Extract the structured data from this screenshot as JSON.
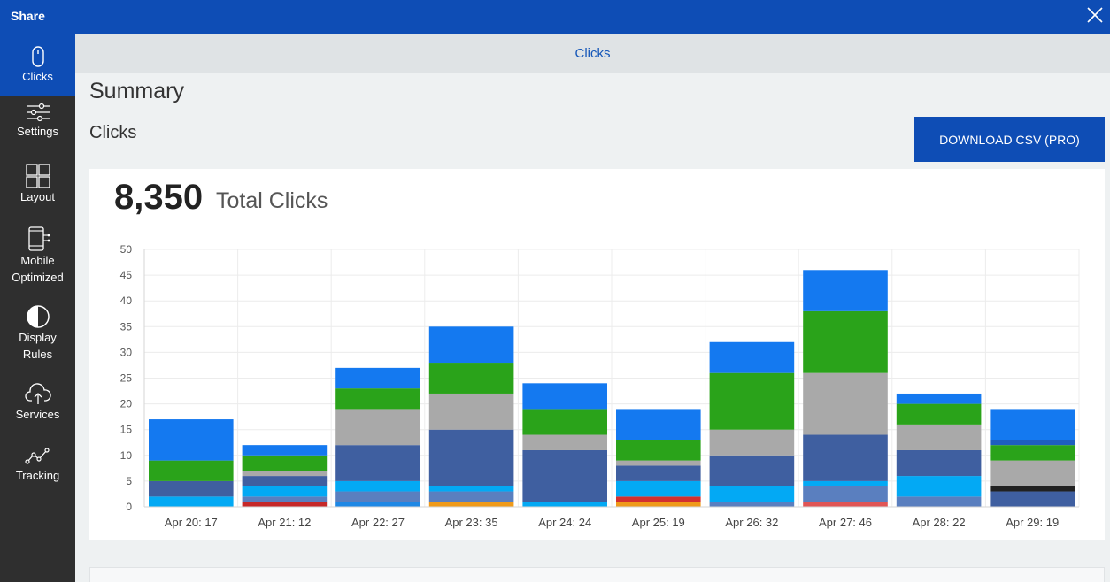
{
  "window": {
    "title": "Share"
  },
  "sidebar": {
    "items": [
      {
        "label": "Clicks",
        "icon": "mouse-icon",
        "active": true
      },
      {
        "label": "Settings",
        "icon": "sliders-icon",
        "active": false
      },
      {
        "label": "Layout",
        "icon": "grid-icon",
        "active": false
      },
      {
        "label": "Mobile Optimized",
        "icon": "mobile-icon",
        "active": false
      },
      {
        "label": "Display Rules",
        "icon": "half-circle-icon",
        "active": false
      },
      {
        "label": "Services",
        "icon": "cloud-upload-icon",
        "active": false
      },
      {
        "label": "Tracking",
        "icon": "trend-line-icon",
        "active": false
      }
    ]
  },
  "tabbar": {
    "label": "Clicks"
  },
  "main": {
    "summary_title": "Summary",
    "section_title": "Clicks",
    "download_label": "DOWNLOAD CSV (PRO)",
    "total_value": "8,350",
    "total_label": "Total Clicks"
  },
  "colors": {
    "accent": "#0e4db5",
    "series": [
      "#1e88e5",
      "#d32f2f",
      "#ef9a1a",
      "#555555",
      "#03a9f4",
      "#3f5fa0",
      "#a9a9a9",
      "#2aa31a",
      "#1479f0",
      "#e05555",
      "#5a7fbf",
      "#212121"
    ]
  },
  "chart_data": {
    "type": "bar",
    "stacked": true,
    "categories": [
      "Apr 20: 17",
      "Apr 21: 12",
      "Apr 22: 27",
      "Apr 23: 35",
      "Apr 24: 24",
      "Apr 25: 19",
      "Apr 26: 32",
      "Apr 27: 46",
      "Apr 28: 22",
      "Apr 29: 19"
    ],
    "ylim": [
      0,
      50
    ],
    "yticks": [
      0,
      5,
      10,
      15,
      20,
      25,
      30,
      35,
      40,
      45,
      50
    ],
    "grid": true,
    "stacks": [
      [
        {
          "value": 2,
          "color": "#03a9f4"
        },
        {
          "value": 3,
          "color": "#3f5fa0"
        },
        {
          "value": 4,
          "color": "#2aa31a"
        },
        {
          "value": 8,
          "color": "#1479f0"
        }
      ],
      [
        {
          "value": 1,
          "color": "#c62828"
        },
        {
          "value": 1,
          "color": "#5a7fbf"
        },
        {
          "value": 2,
          "color": "#03a9f4"
        },
        {
          "value": 2,
          "color": "#3f5fa0"
        },
        {
          "value": 1,
          "color": "#a9a9a9"
        },
        {
          "value": 3,
          "color": "#2aa31a"
        },
        {
          "value": 2,
          "color": "#1479f0"
        }
      ],
      [
        {
          "value": 1,
          "color": "#1e88e5"
        },
        {
          "value": 2,
          "color": "#5a7fbf"
        },
        {
          "value": 2,
          "color": "#03a9f4"
        },
        {
          "value": 7,
          "color": "#3f5fa0"
        },
        {
          "value": 7,
          "color": "#a9a9a9"
        },
        {
          "value": 4,
          "color": "#2aa31a"
        },
        {
          "value": 4,
          "color": "#1479f0"
        }
      ],
      [
        {
          "value": 1,
          "color": "#ef9a1a"
        },
        {
          "value": 2,
          "color": "#5a7fbf"
        },
        {
          "value": 1,
          "color": "#03a9f4"
        },
        {
          "value": 11,
          "color": "#3f5fa0"
        },
        {
          "value": 7,
          "color": "#a9a9a9"
        },
        {
          "value": 6,
          "color": "#2aa31a"
        },
        {
          "value": 7,
          "color": "#1479f0"
        }
      ],
      [
        {
          "value": 1,
          "color": "#03a9f4"
        },
        {
          "value": 10,
          "color": "#3f5fa0"
        },
        {
          "value": 3,
          "color": "#a9a9a9"
        },
        {
          "value": 5,
          "color": "#2aa31a"
        },
        {
          "value": 5,
          "color": "#1479f0"
        }
      ],
      [
        {
          "value": 1,
          "color": "#ef9a1a"
        },
        {
          "value": 1,
          "color": "#d32f2f"
        },
        {
          "value": 3,
          "color": "#03a9f4"
        },
        {
          "value": 3,
          "color": "#3f5fa0"
        },
        {
          "value": 1,
          "color": "#a9a9a9"
        },
        {
          "value": 4,
          "color": "#2aa31a"
        },
        {
          "value": 6,
          "color": "#1479f0"
        }
      ],
      [
        {
          "value": 1,
          "color": "#5a7fbf"
        },
        {
          "value": 3,
          "color": "#03a9f4"
        },
        {
          "value": 6,
          "color": "#3f5fa0"
        },
        {
          "value": 5,
          "color": "#a9a9a9"
        },
        {
          "value": 11,
          "color": "#2aa31a"
        },
        {
          "value": 6,
          "color": "#1479f0"
        }
      ],
      [
        {
          "value": 1,
          "color": "#e05555"
        },
        {
          "value": 3,
          "color": "#5a7fbf"
        },
        {
          "value": 1,
          "color": "#03a9f4"
        },
        {
          "value": 9,
          "color": "#3f5fa0"
        },
        {
          "value": 12,
          "color": "#a9a9a9"
        },
        {
          "value": 12,
          "color": "#2aa31a"
        },
        {
          "value": 8,
          "color": "#1479f0"
        }
      ],
      [
        {
          "value": 2,
          "color": "#5a7fbf"
        },
        {
          "value": 4,
          "color": "#03a9f4"
        },
        {
          "value": 5,
          "color": "#3f5fa0"
        },
        {
          "value": 5,
          "color": "#a9a9a9"
        },
        {
          "value": 4,
          "color": "#2aa31a"
        },
        {
          "value": 2,
          "color": "#1479f0"
        }
      ],
      [
        {
          "value": 3,
          "color": "#3f5fa0"
        },
        {
          "value": 1,
          "color": "#212121"
        },
        {
          "value": 5,
          "color": "#a9a9a9"
        },
        {
          "value": 3,
          "color": "#2aa31a"
        },
        {
          "value": 1,
          "color": "#1e5fbf"
        },
        {
          "value": 6,
          "color": "#1479f0"
        }
      ]
    ]
  }
}
